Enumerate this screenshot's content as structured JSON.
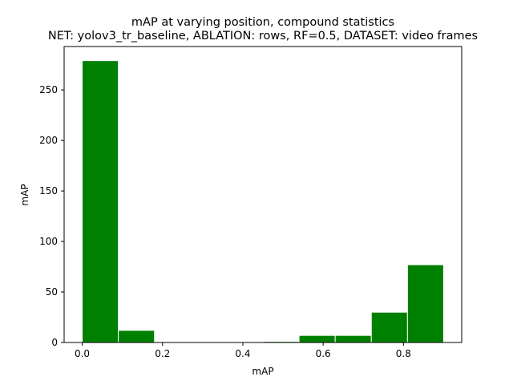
{
  "chart_data": {
    "type": "bar",
    "title": "mAP at varying position, compound statistics",
    "subtitle": "NET: yolov3_tr_baseline, ABLATION: rows, RF=0.5, DATASET: video frames",
    "xlabel": "mAP",
    "ylabel": "mAP",
    "bin_edges": [
      0.0,
      0.09,
      0.18,
      0.27,
      0.36,
      0.45,
      0.54,
      0.63,
      0.72,
      0.81,
      0.9
    ],
    "values": [
      279,
      12,
      0,
      0,
      0,
      1,
      7,
      7,
      30,
      77
    ],
    "xlim": [
      -0.045,
      0.945
    ],
    "ylim": [
      0,
      293
    ],
    "xticks": [
      0.0,
      0.2,
      0.4,
      0.6,
      0.8
    ],
    "xtick_labels": [
      "0.0",
      "0.2",
      "0.4",
      "0.6",
      "0.8"
    ],
    "yticks": [
      0,
      50,
      100,
      150,
      200,
      250
    ],
    "ytick_labels": [
      "0",
      "50",
      "100",
      "150",
      "200",
      "250"
    ],
    "bar_color": "#008000",
    "edge_color": "#ffffff",
    "grid": false,
    "legend": "none"
  }
}
